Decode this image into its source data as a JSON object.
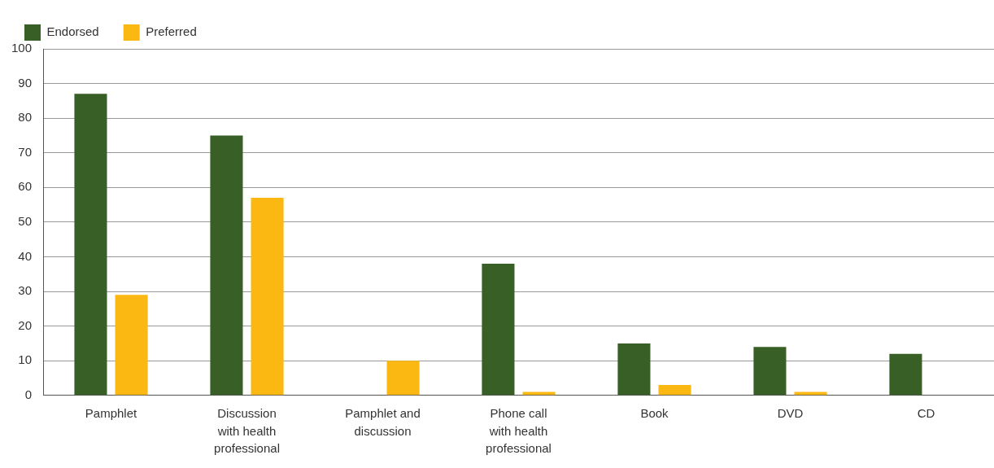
{
  "chart_data": {
    "type": "bar",
    "categories": [
      "Pamphlet",
      "Discussion with health professional",
      "Pamphlet and discussion",
      "Phone call with health professional",
      "Book",
      "DVD",
      "CD"
    ],
    "series": [
      {
        "name": "Endorsed",
        "color": "#386026",
        "values": [
          87,
          75,
          null,
          38,
          15,
          14,
          12
        ]
      },
      {
        "name": "Preferred",
        "color": "#fbb812",
        "values": [
          29,
          57,
          10,
          1,
          3,
          1,
          null
        ]
      }
    ],
    "ylim": [
      0,
      100
    ],
    "yticks": [
      0,
      10,
      20,
      30,
      40,
      50,
      60,
      70,
      80,
      90,
      100
    ],
    "grid": "y",
    "legend": "top left"
  }
}
